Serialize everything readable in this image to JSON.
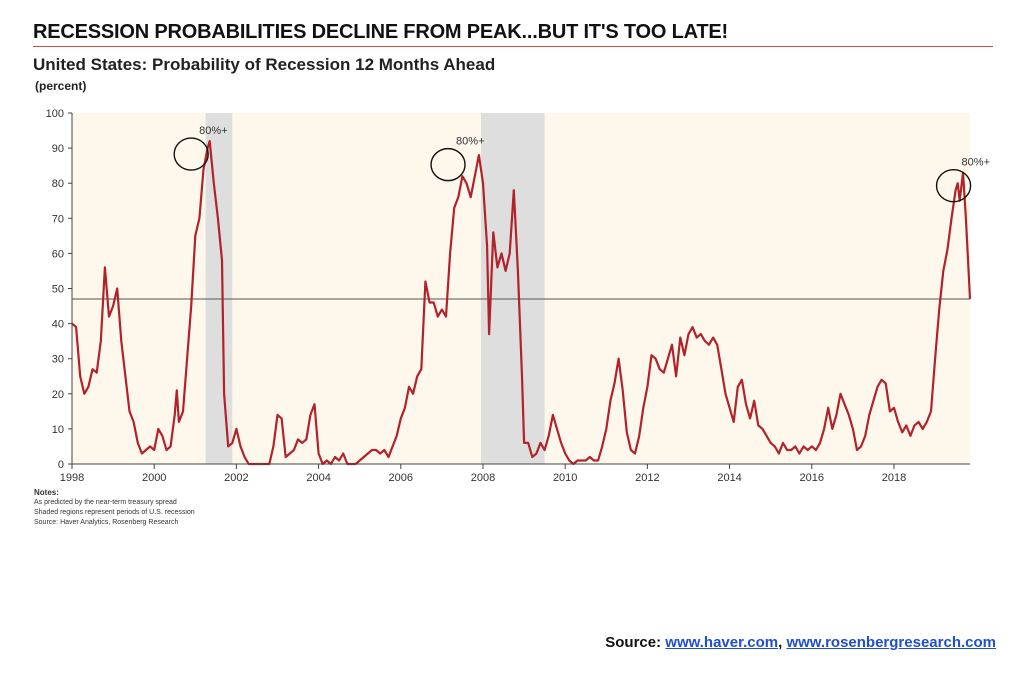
{
  "headline": "RECESSION PROBABILITIES DECLINE FROM PEAK...BUT IT'S TOO LATE!",
  "chart_data": {
    "type": "line",
    "title": "United States: Probability of Recession 12 Months Ahead",
    "ylabel": "(percent)",
    "xlabel": "",
    "xlim": [
      1998.0,
      2019.85
    ],
    "ylim": [
      0,
      100
    ],
    "x_ticks": [
      1998,
      2000,
      2002,
      2004,
      2006,
      2008,
      2010,
      2012,
      2014,
      2016,
      2018
    ],
    "y_ticks": [
      0,
      10,
      20,
      30,
      40,
      50,
      60,
      70,
      80,
      90,
      100
    ],
    "reference_line": 47,
    "recessions": [
      [
        2001.25,
        2001.9
      ],
      [
        2007.95,
        2009.5
      ]
    ],
    "annotations": [
      {
        "text": "80%+",
        "x": 2000.9,
        "y": 90
      },
      {
        "text": "80%+",
        "x": 2007.15,
        "y": 87
      },
      {
        "text": "80%+",
        "x": 2019.45,
        "y": 81
      }
    ],
    "colors": {
      "line": "#b2222a",
      "background": "#fdf8eb",
      "recession": "#dedede",
      "reference": "#555555"
    },
    "series": [
      {
        "points": [
          [
            1998.0,
            40
          ],
          [
            1998.1,
            39
          ],
          [
            1998.2,
            25
          ],
          [
            1998.3,
            20
          ],
          [
            1998.4,
            22
          ],
          [
            1998.5,
            27
          ],
          [
            1998.6,
            26
          ],
          [
            1998.7,
            35
          ],
          [
            1998.8,
            56
          ],
          [
            1998.9,
            42
          ],
          [
            1999.0,
            45
          ],
          [
            1999.1,
            50
          ],
          [
            1999.2,
            35
          ],
          [
            1999.4,
            15
          ],
          [
            1999.5,
            12
          ],
          [
            1999.6,
            6
          ],
          [
            1999.7,
            3
          ],
          [
            1999.8,
            4
          ],
          [
            1999.9,
            5
          ],
          [
            2000.0,
            4
          ],
          [
            2000.1,
            10
          ],
          [
            2000.2,
            8
          ],
          [
            2000.3,
            4
          ],
          [
            2000.4,
            5
          ],
          [
            2000.5,
            14
          ],
          [
            2000.55,
            21
          ],
          [
            2000.6,
            12
          ],
          [
            2000.7,
            15
          ],
          [
            2000.8,
            30
          ],
          [
            2000.9,
            45
          ],
          [
            2001.0,
            65
          ],
          [
            2001.1,
            70
          ],
          [
            2001.2,
            84
          ],
          [
            2001.3,
            90
          ],
          [
            2001.35,
            92
          ],
          [
            2001.45,
            80
          ],
          [
            2001.55,
            70
          ],
          [
            2001.65,
            58
          ],
          [
            2001.7,
            20
          ],
          [
            2001.8,
            5
          ],
          [
            2001.9,
            6
          ],
          [
            2002.0,
            10
          ],
          [
            2002.1,
            5
          ],
          [
            2002.2,
            2
          ],
          [
            2002.3,
            0
          ],
          [
            2002.5,
            0
          ],
          [
            2002.6,
            0
          ],
          [
            2002.8,
            0
          ],
          [
            2002.9,
            5
          ],
          [
            2003.0,
            14
          ],
          [
            2003.1,
            13
          ],
          [
            2003.2,
            2
          ],
          [
            2003.3,
            3
          ],
          [
            2003.4,
            4
          ],
          [
            2003.5,
            7
          ],
          [
            2003.6,
            6
          ],
          [
            2003.7,
            7
          ],
          [
            2003.8,
            14
          ],
          [
            2003.9,
            17
          ],
          [
            2004.0,
            3
          ],
          [
            2004.1,
            0
          ],
          [
            2004.2,
            1
          ],
          [
            2004.3,
            0
          ],
          [
            2004.4,
            2
          ],
          [
            2004.5,
            1
          ],
          [
            2004.6,
            3
          ],
          [
            2004.7,
            0
          ],
          [
            2004.8,
            0
          ],
          [
            2004.9,
            0
          ],
          [
            2005.0,
            1
          ],
          [
            2005.1,
            2
          ],
          [
            2005.2,
            3
          ],
          [
            2005.3,
            4
          ],
          [
            2005.4,
            4
          ],
          [
            2005.5,
            3
          ],
          [
            2005.6,
            4
          ],
          [
            2005.7,
            2
          ],
          [
            2005.8,
            5
          ],
          [
            2005.9,
            8
          ],
          [
            2006.0,
            13
          ],
          [
            2006.1,
            16
          ],
          [
            2006.2,
            22
          ],
          [
            2006.3,
            20
          ],
          [
            2006.4,
            25
          ],
          [
            2006.5,
            27
          ],
          [
            2006.6,
            52
          ],
          [
            2006.7,
            46
          ],
          [
            2006.8,
            46
          ],
          [
            2006.9,
            42
          ],
          [
            2007.0,
            44
          ],
          [
            2007.1,
            42
          ],
          [
            2007.2,
            60
          ],
          [
            2007.3,
            73
          ],
          [
            2007.4,
            76
          ],
          [
            2007.5,
            82
          ],
          [
            2007.6,
            80
          ],
          [
            2007.7,
            76
          ],
          [
            2007.8,
            82
          ],
          [
            2007.9,
            88
          ],
          [
            2008.0,
            80
          ],
          [
            2008.1,
            62
          ],
          [
            2008.15,
            37
          ],
          [
            2008.25,
            66
          ],
          [
            2008.35,
            56
          ],
          [
            2008.45,
            60
          ],
          [
            2008.55,
            55
          ],
          [
            2008.65,
            60
          ],
          [
            2008.75,
            78
          ],
          [
            2008.85,
            55
          ],
          [
            2008.95,
            25
          ],
          [
            2009.0,
            6
          ],
          [
            2009.1,
            6
          ],
          [
            2009.2,
            2
          ],
          [
            2009.3,
            3
          ],
          [
            2009.4,
            6
          ],
          [
            2009.5,
            4
          ],
          [
            2009.6,
            8
          ],
          [
            2009.7,
            14
          ],
          [
            2009.8,
            10
          ],
          [
            2009.9,
            6
          ],
          [
            2010.0,
            3
          ],
          [
            2010.1,
            1
          ],
          [
            2010.2,
            0
          ],
          [
            2010.3,
            1
          ],
          [
            2010.4,
            1
          ],
          [
            2010.5,
            1
          ],
          [
            2010.6,
            2
          ],
          [
            2010.7,
            1
          ],
          [
            2010.8,
            1
          ],
          [
            2010.9,
            5
          ],
          [
            2011.0,
            10
          ],
          [
            2011.1,
            18
          ],
          [
            2011.2,
            23
          ],
          [
            2011.3,
            30
          ],
          [
            2011.4,
            21
          ],
          [
            2011.5,
            9
          ],
          [
            2011.6,
            4
          ],
          [
            2011.7,
            3
          ],
          [
            2011.8,
            8
          ],
          [
            2011.9,
            16
          ],
          [
            2012.0,
            22
          ],
          [
            2012.1,
            31
          ],
          [
            2012.2,
            30
          ],
          [
            2012.3,
            27
          ],
          [
            2012.4,
            26
          ],
          [
            2012.5,
            30
          ],
          [
            2012.6,
            34
          ],
          [
            2012.7,
            25
          ],
          [
            2012.8,
            36
          ],
          [
            2012.9,
            31
          ],
          [
            2013.0,
            37
          ],
          [
            2013.1,
            39
          ],
          [
            2013.2,
            36
          ],
          [
            2013.3,
            37
          ],
          [
            2013.4,
            35
          ],
          [
            2013.5,
            34
          ],
          [
            2013.6,
            36
          ],
          [
            2013.7,
            34
          ],
          [
            2013.8,
            27
          ],
          [
            2013.9,
            20
          ],
          [
            2014.0,
            16
          ],
          [
            2014.1,
            12
          ],
          [
            2014.2,
            22
          ],
          [
            2014.3,
            24
          ],
          [
            2014.4,
            17
          ],
          [
            2014.5,
            13
          ],
          [
            2014.6,
            18
          ],
          [
            2014.7,
            11
          ],
          [
            2014.8,
            10
          ],
          [
            2014.9,
            8
          ],
          [
            2015.0,
            6
          ],
          [
            2015.1,
            5
          ],
          [
            2015.2,
            3
          ],
          [
            2015.3,
            6
          ],
          [
            2015.4,
            4
          ],
          [
            2015.5,
            4
          ],
          [
            2015.6,
            5
          ],
          [
            2015.7,
            3
          ],
          [
            2015.8,
            5
          ],
          [
            2015.9,
            4
          ],
          [
            2016.0,
            5
          ],
          [
            2016.1,
            4
          ],
          [
            2016.2,
            6
          ],
          [
            2016.3,
            10
          ],
          [
            2016.4,
            16
          ],
          [
            2016.5,
            10
          ],
          [
            2016.6,
            14
          ],
          [
            2016.7,
            20
          ],
          [
            2016.8,
            17
          ],
          [
            2016.9,
            14
          ],
          [
            2017.0,
            10
          ],
          [
            2017.1,
            4
          ],
          [
            2017.2,
            5
          ],
          [
            2017.3,
            8
          ],
          [
            2017.4,
            14
          ],
          [
            2017.5,
            18
          ],
          [
            2017.6,
            22
          ],
          [
            2017.7,
            24
          ],
          [
            2017.8,
            23
          ],
          [
            2017.9,
            15
          ],
          [
            2018.0,
            16
          ],
          [
            2018.1,
            12
          ],
          [
            2018.2,
            9
          ],
          [
            2018.3,
            11
          ],
          [
            2018.4,
            8
          ],
          [
            2018.5,
            11
          ],
          [
            2018.6,
            12
          ],
          [
            2018.7,
            10
          ],
          [
            2018.8,
            12
          ],
          [
            2018.9,
            15
          ],
          [
            2019.0,
            30
          ],
          [
            2019.1,
            44
          ],
          [
            2019.2,
            55
          ],
          [
            2019.3,
            61
          ],
          [
            2019.4,
            70
          ],
          [
            2019.5,
            78
          ],
          [
            2019.55,
            80
          ],
          [
            2019.6,
            75
          ],
          [
            2019.68,
            83
          ],
          [
            2019.75,
            70
          ],
          [
            2019.85,
            47
          ]
        ]
      }
    ]
  },
  "notes": {
    "title": "Notes:",
    "lines": [
      "As predicted by the near-term treasury spread",
      "Shaded regions represent periods of U.S. recession",
      "Source: Haver Analytics, Rosenberg Research"
    ]
  },
  "source": {
    "label": "Source:",
    "links": [
      "www.haver.com",
      "www.rosenbergresearch.com"
    ],
    "separator": ","
  }
}
